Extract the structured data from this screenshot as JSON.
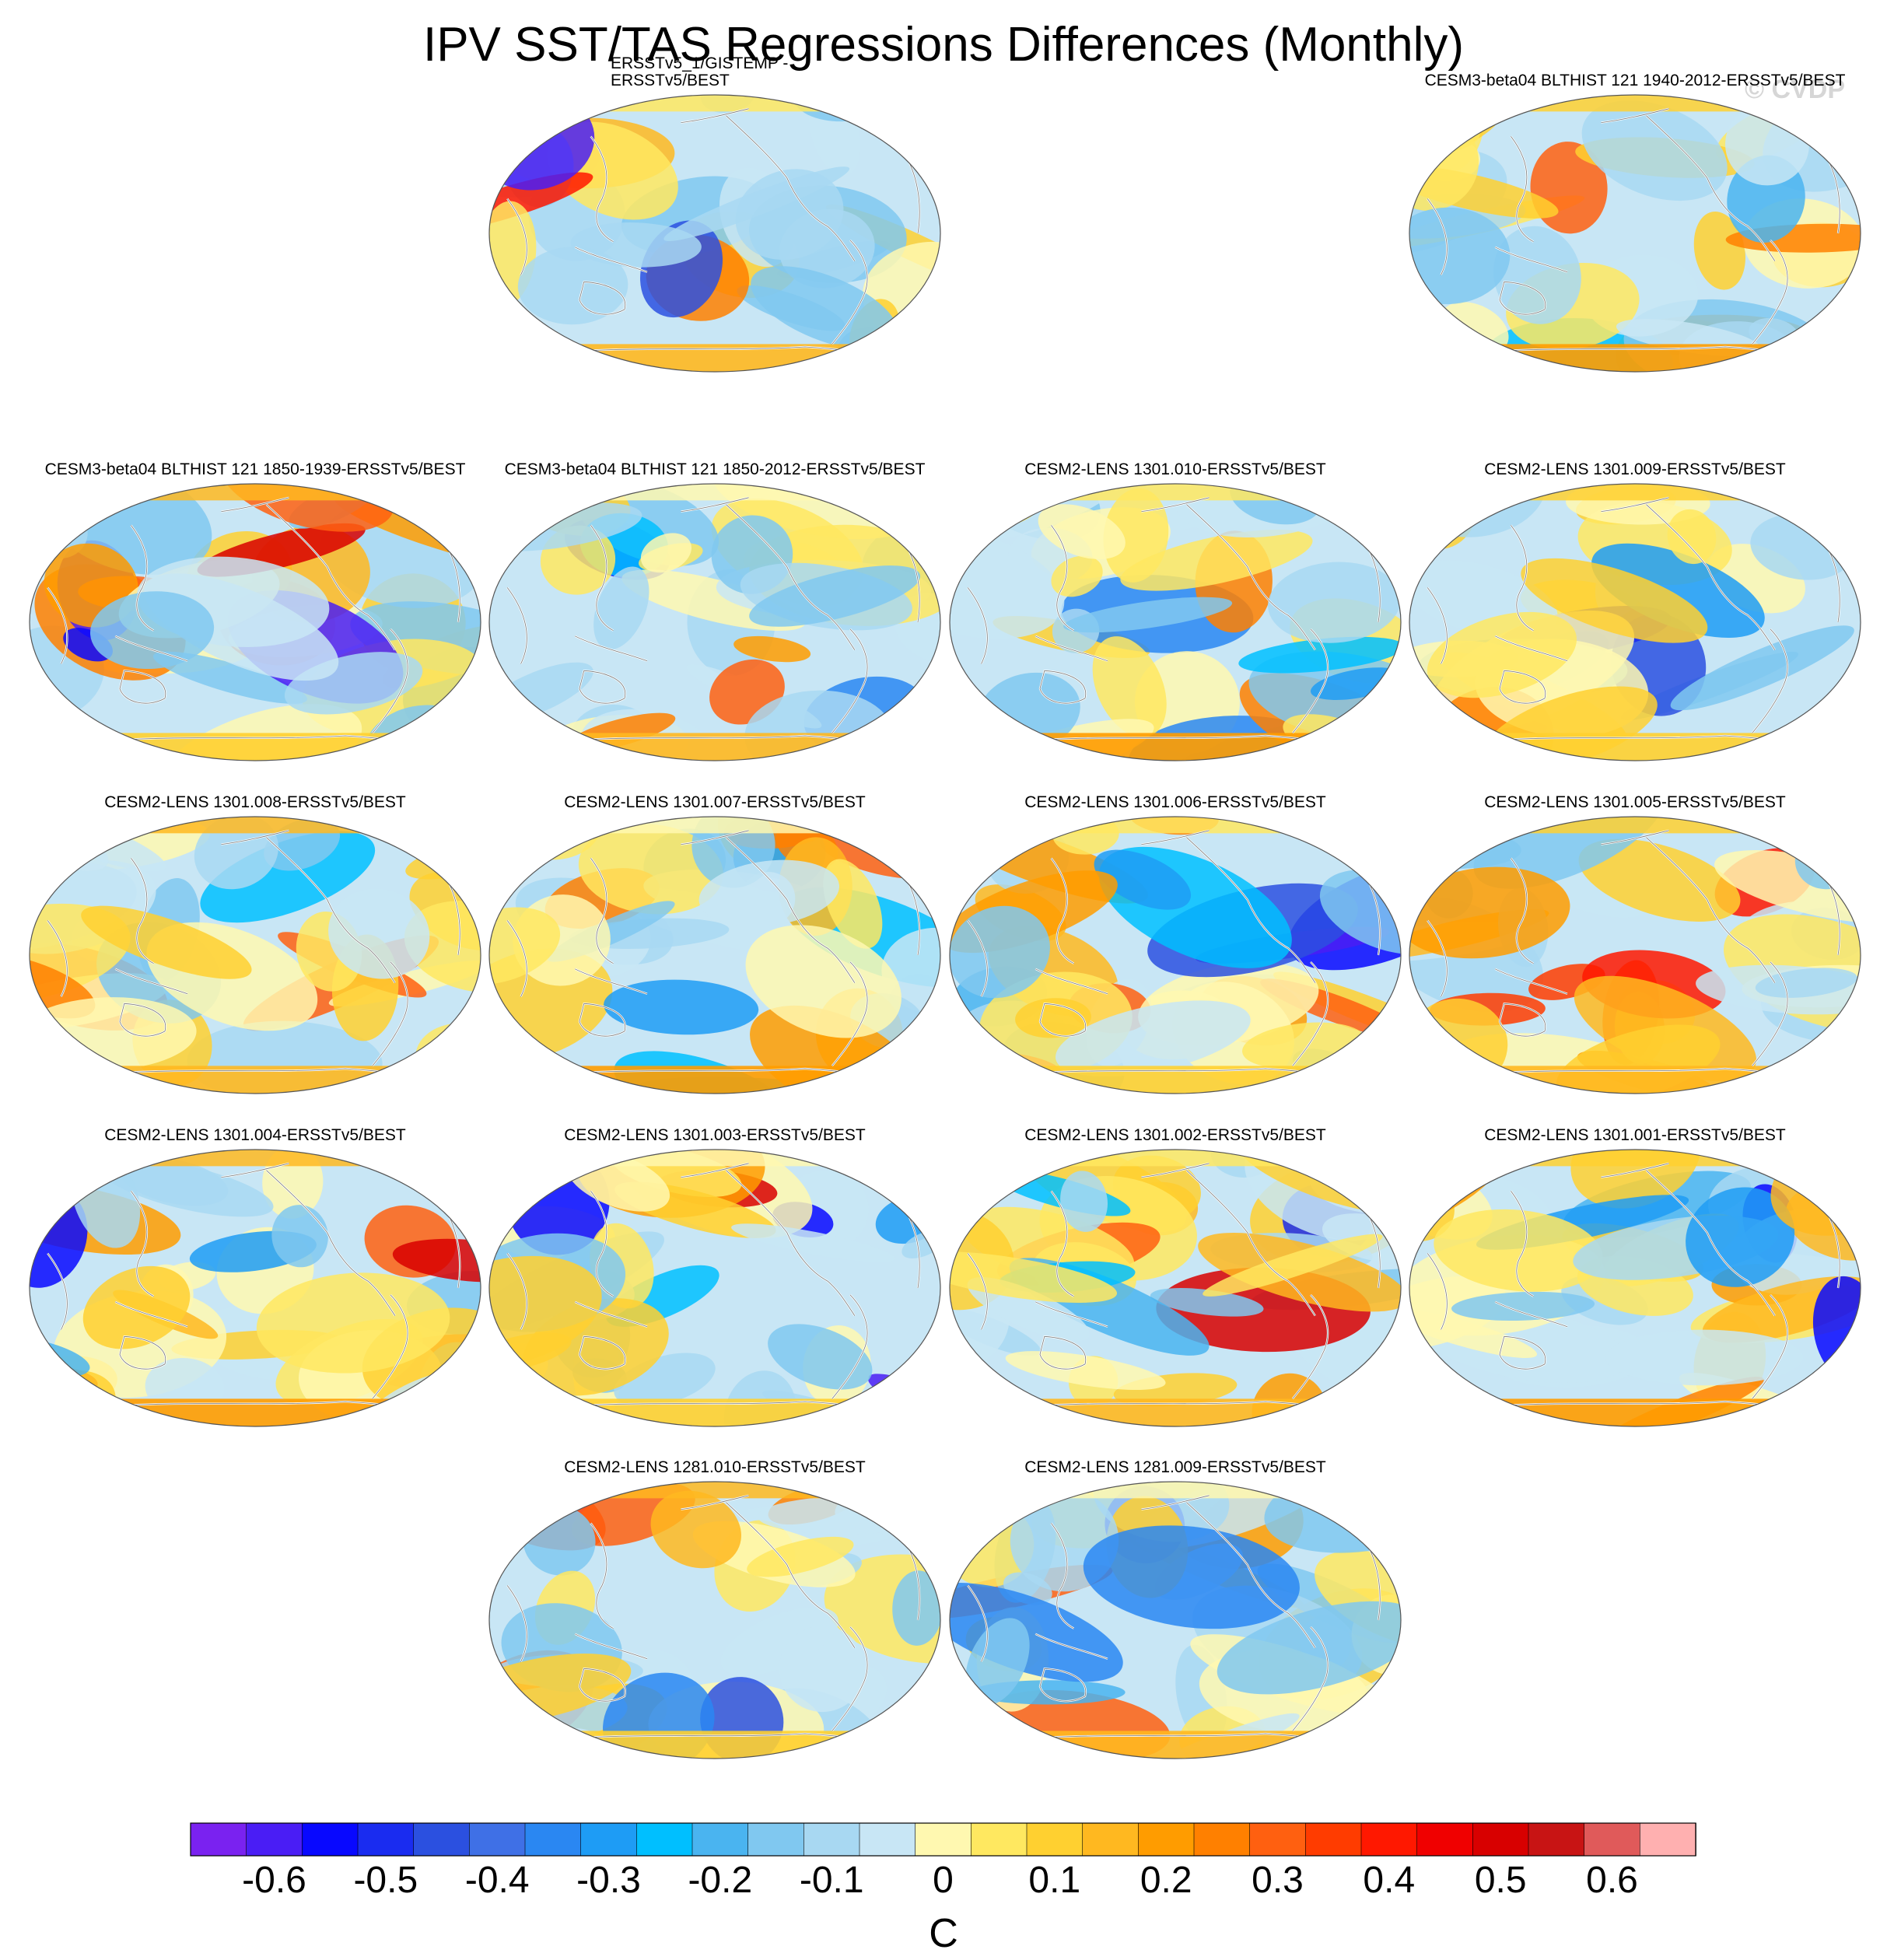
{
  "chart_data": {
    "type": "heatmap",
    "title": "IPV SST/TAS Regressions Differences (Monthly)",
    "watermark": "© CVDP",
    "projection": "global map (Robinson-like ellipse, Pacific-centered)",
    "panels": [
      {
        "label_lines": [
          "ERSSTv5_1/GISTEMP -",
          "ERSSTv5/BEST"
        ],
        "row": 0,
        "col": 1,
        "seed": 1
      },
      {
        "label_lines": [
          "CESM3-beta04 BLTHIST 121 1940-2012-ERSSTv5/BEST"
        ],
        "row": 0,
        "col": 3,
        "seed": 2
      },
      {
        "label_lines": [
          "CESM3-beta04 BLTHIST 121 1850-1939-ERSSTv5/BEST"
        ],
        "row": 1,
        "col": 0,
        "seed": 3
      },
      {
        "label_lines": [
          "CESM3-beta04 BLTHIST 121 1850-2012-ERSSTv5/BEST"
        ],
        "row": 1,
        "col": 1,
        "seed": 4
      },
      {
        "label_lines": [
          "CESM2-LENS 1301.010-ERSSTv5/BEST"
        ],
        "row": 1,
        "col": 2,
        "seed": 5
      },
      {
        "label_lines": [
          "CESM2-LENS 1301.009-ERSSTv5/BEST"
        ],
        "row": 1,
        "col": 3,
        "seed": 6
      },
      {
        "label_lines": [
          "CESM2-LENS 1301.008-ERSSTv5/BEST"
        ],
        "row": 2,
        "col": 0,
        "seed": 7
      },
      {
        "label_lines": [
          "CESM2-LENS 1301.007-ERSSTv5/BEST"
        ],
        "row": 2,
        "col": 1,
        "seed": 8
      },
      {
        "label_lines": [
          "CESM2-LENS 1301.006-ERSSTv5/BEST"
        ],
        "row": 2,
        "col": 2,
        "seed": 9
      },
      {
        "label_lines": [
          "CESM2-LENS 1301.005-ERSSTv5/BEST"
        ],
        "row": 2,
        "col": 3,
        "seed": 10
      },
      {
        "label_lines": [
          "CESM2-LENS 1301.004-ERSSTv5/BEST"
        ],
        "row": 3,
        "col": 0,
        "seed": 11
      },
      {
        "label_lines": [
          "CESM2-LENS 1301.003-ERSSTv5/BEST"
        ],
        "row": 3,
        "col": 1,
        "seed": 12
      },
      {
        "label_lines": [
          "CESM2-LENS 1301.002-ERSSTv5/BEST"
        ],
        "row": 3,
        "col": 2,
        "seed": 13
      },
      {
        "label_lines": [
          "CESM2-LENS 1301.001-ERSSTv5/BEST"
        ],
        "row": 3,
        "col": 3,
        "seed": 14
      },
      {
        "label_lines": [
          "CESM2-LENS 1281.010-ERSSTv5/BEST"
        ],
        "row": 4,
        "col": 1,
        "seed": 15
      },
      {
        "label_lines": [
          "CESM2-LENS 1281.009-ERSSTv5/BEST"
        ],
        "row": 4,
        "col": 2,
        "seed": 16
      }
    ],
    "colorbar": {
      "units": "C",
      "tick_labels": [
        "-0.6",
        "-0.5",
        "-0.4",
        "-0.3",
        "-0.2",
        "-0.1",
        "0",
        "0.1",
        "0.2",
        "0.3",
        "0.4",
        "0.5",
        "0.6"
      ],
      "colors": [
        "#7a22f0",
        "#4a1df5",
        "#0808ff",
        "#1a2cf0",
        "#2b50e0",
        "#3f70e6",
        "#2a87f2",
        "#1e9cf5",
        "#00bfff",
        "#4ab4f0",
        "#80c8f0",
        "#a8d8f2",
        "#c8e6f5",
        "#fff8b0",
        "#ffe860",
        "#ffd030",
        "#ffb820",
        "#ff9c00",
        "#ff8000",
        "#ff6010",
        "#ff3c00",
        "#ff1800",
        "#f00000",
        "#d80000",
        "#c81414",
        "#e05a5a",
        "#ffb0b0"
      ]
    }
  }
}
